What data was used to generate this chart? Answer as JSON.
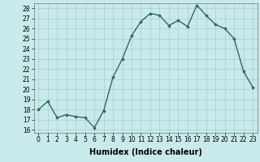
{
  "xlabel": "Humidex (Indice chaleur)",
  "ylabel": "",
  "x": [
    0,
    1,
    2,
    3,
    4,
    5,
    6,
    7,
    8,
    9,
    10,
    11,
    12,
    13,
    14,
    15,
    16,
    17,
    18,
    19,
    20,
    21,
    22,
    23
  ],
  "y": [
    18.0,
    18.8,
    17.2,
    17.5,
    17.3,
    17.2,
    16.2,
    17.9,
    21.2,
    23.0,
    25.3,
    26.7,
    27.5,
    27.3,
    26.3,
    26.8,
    26.2,
    28.3,
    27.3,
    26.4,
    26.0,
    25.0,
    21.8,
    20.2
  ],
  "line_color": "#2e6b5e",
  "marker": "D",
  "marker_size": 1.8,
  "linewidth": 1.0,
  "background_color": "#c8eaea",
  "grid_color": "#aacccc",
  "ylim_min": 16,
  "ylim_max": 28,
  "yticks": [
    16,
    17,
    18,
    19,
    20,
    21,
    22,
    23,
    24,
    25,
    26,
    27,
    28
  ],
  "xticks": [
    0,
    1,
    2,
    3,
    4,
    5,
    6,
    7,
    8,
    9,
    10,
    11,
    12,
    13,
    14,
    15,
    16,
    17,
    18,
    19,
    20,
    21,
    22,
    23
  ],
  "tick_fontsize": 5.5,
  "xlabel_fontsize": 7.0,
  "xlabel_fontweight": "bold"
}
